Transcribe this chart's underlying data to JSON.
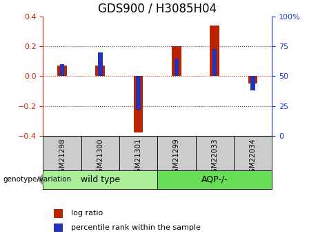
{
  "title": "GDS900 / H3085H04",
  "samples": [
    "GSM21298",
    "GSM21300",
    "GSM21301",
    "GSM21299",
    "GSM22033",
    "GSM22034"
  ],
  "log_ratio": [
    0.07,
    0.07,
    -0.38,
    0.2,
    0.34,
    -0.05
  ],
  "percentile_rank_pct": [
    60,
    70,
    22,
    65,
    73,
    38
  ],
  "groups": [
    {
      "label": "wild type",
      "indices": [
        0,
        1,
        2
      ],
      "color": "#aaee99"
    },
    {
      "label": "AQP-/-",
      "indices": [
        3,
        4,
        5
      ],
      "color": "#66dd55"
    }
  ],
  "left_ylim": [
    -0.4,
    0.4
  ],
  "right_ylim": [
    0,
    100
  ],
  "left_yticks": [
    -0.4,
    -0.2,
    0.0,
    0.2,
    0.4
  ],
  "right_yticks": [
    0,
    25,
    50,
    75,
    100
  ],
  "red_bar_width": 0.25,
  "blue_bar_width": 0.12,
  "red_color": "#bb2200",
  "blue_color": "#2233bb",
  "left_tick_color": "#cc2200",
  "right_tick_color": "#1133cc",
  "hline_color": "#cc2200",
  "dotted_color": "#444444",
  "label_area_color": "#cccccc",
  "genotype_text": "genotype/variation",
  "legend_log_ratio": "log ratio",
  "legend_percentile": "percentile rank within the sample",
  "title_fontsize": 12,
  "axis_fontsize": 9,
  "tick_fontsize": 8,
  "legend_fontsize": 8
}
